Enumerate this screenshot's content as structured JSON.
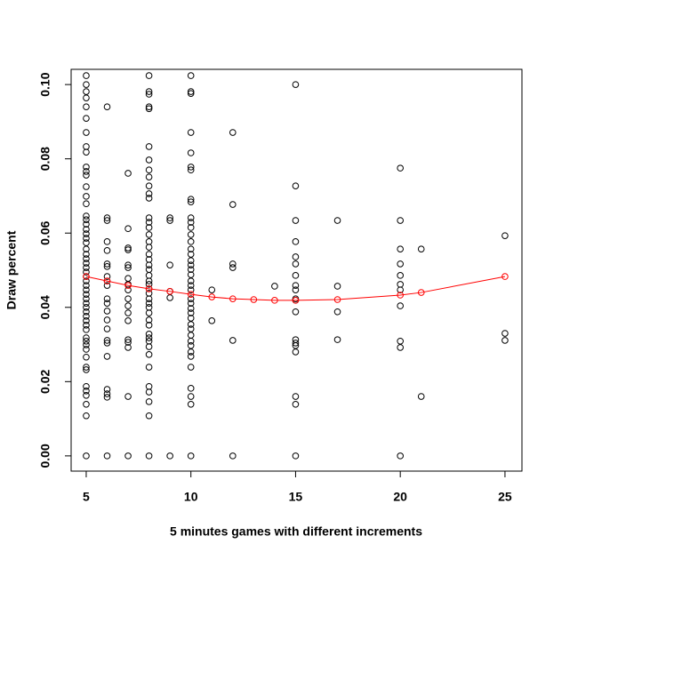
{
  "chart_data": {
    "type": "scatter",
    "xlabel": "5 minutes games with different increments",
    "ylabel": "Draw percent",
    "xlim": [
      4.28,
      25.81
    ],
    "ylim": [
      -0.0041,
      0.1041
    ],
    "xticks": [
      5,
      10,
      15,
      20,
      25
    ],
    "yticks": [
      {
        "value": 0,
        "label": "0.00"
      },
      {
        "value": 0.02,
        "label": "0.02"
      },
      {
        "value": 0.04,
        "label": "0.04"
      },
      {
        "value": 0.06,
        "label": "0.06"
      },
      {
        "value": 0.08,
        "label": "0.08"
      },
      {
        "value": 0.1,
        "label": "0.10"
      }
    ],
    "series": [
      {
        "color": "#000000",
        "x": [
          5,
          5,
          5,
          5,
          5,
          5,
          5,
          5,
          5,
          5,
          5,
          5,
          5,
          5,
          5,
          5,
          5,
          5,
          5,
          5,
          5,
          5,
          5,
          5,
          5,
          5,
          5,
          5,
          5,
          5,
          5,
          5,
          5,
          5,
          5,
          5,
          5,
          5,
          5,
          5,
          5,
          5,
          5,
          5,
          5,
          5,
          5,
          5,
          5,
          5,
          5,
          5,
          5,
          5,
          6,
          6,
          6,
          6,
          6,
          6,
          6,
          6,
          6,
          6,
          6,
          6,
          6,
          6,
          6,
          6,
          6,
          6,
          6,
          6,
          6,
          6,
          7,
          7,
          7,
          7,
          7,
          7,
          7,
          7,
          7,
          7,
          7,
          7,
          7,
          7,
          7,
          7,
          7,
          7,
          8,
          8,
          8,
          8,
          8,
          8,
          8,
          8,
          8,
          8,
          8,
          8,
          8,
          8,
          8,
          8,
          8,
          8,
          8,
          8,
          8,
          8,
          8,
          8,
          8,
          8,
          8,
          8,
          8,
          8,
          8,
          8,
          8,
          8,
          8,
          8,
          8,
          8,
          8,
          8,
          8,
          8,
          8,
          8,
          9,
          9,
          9,
          9,
          9,
          9,
          10,
          10,
          10,
          10,
          10,
          10,
          10,
          10,
          10,
          10,
          10,
          10,
          10,
          10,
          10,
          10,
          10,
          10,
          10,
          10,
          10,
          10,
          10,
          10,
          10,
          10,
          10,
          10,
          10,
          10,
          10,
          10,
          10,
          10,
          10,
          10,
          10,
          10,
          10,
          10,
          11,
          11,
          12,
          12,
          12,
          12,
          12,
          12,
          14,
          15,
          15,
          15,
          15,
          15,
          15,
          15,
          15,
          15,
          15,
          15,
          15,
          15,
          15,
          15,
          15,
          15,
          15,
          15,
          17,
          17,
          17,
          17,
          20,
          20,
          20,
          20,
          20,
          20,
          20,
          20,
          20,
          20,
          20,
          21,
          21,
          25,
          25,
          25
        ],
        "values": [
          0.1024,
          0.1,
          0.0981,
          0.0964,
          0.094,
          0.0909,
          0.0871,
          0.0833,
          0.0818,
          0.0778,
          0.0766,
          0.0756,
          0.0725,
          0.0699,
          0.0679,
          0.0646,
          0.0636,
          0.0624,
          0.061,
          0.0598,
          0.0586,
          0.0574,
          0.0557,
          0.0543,
          0.0531,
          0.0519,
          0.0507,
          0.0495,
          0.0483,
          0.0471,
          0.0459,
          0.0447,
          0.0435,
          0.0423,
          0.0411,
          0.04,
          0.0388,
          0.0376,
          0.0364,
          0.0352,
          0.034,
          0.0318,
          0.0309,
          0.0299,
          0.0287,
          0.0266,
          0.0239,
          0.0232,
          0.0187,
          0.0175,
          0.0163,
          0.0139,
          0.0108,
          0,
          0.094,
          0.0641,
          0.0634,
          0.0577,
          0.0553,
          0.0517,
          0.051,
          0.0483,
          0.0471,
          0.0459,
          0.0423,
          0.0411,
          0.039,
          0.0366,
          0.0342,
          0.0311,
          0.0304,
          0.0268,
          0.0179,
          0.0167,
          0.0158,
          0,
          0.0761,
          0.0612,
          0.056,
          0.0555,
          0.0514,
          0.0507,
          0.0478,
          0.0462,
          0.0447,
          0.0423,
          0.0404,
          0.0385,
          0.0364,
          0.0313,
          0.0306,
          0.0292,
          0.016,
          0,
          0.1024,
          0.0981,
          0.0974,
          0.094,
          0.0935,
          0.0833,
          0.0797,
          0.077,
          0.0751,
          0.0727,
          0.0706,
          0.0694,
          0.0641,
          0.0629,
          0.0615,
          0.0596,
          0.0577,
          0.0562,
          0.0543,
          0.0529,
          0.0514,
          0.0502,
          0.0486,
          0.0471,
          0.0462,
          0.045,
          0.0438,
          0.0423,
          0.0411,
          0.04,
          0.0385,
          0.0366,
          0.0352,
          0.0328,
          0.0318,
          0.0309,
          0.0294,
          0.0273,
          0.0239,
          0.0187,
          0.0172,
          0.0146,
          0.0108,
          0,
          0.0641,
          0.0634,
          0.0514,
          0.0443,
          0.0426,
          0,
          0.1024,
          0.0981,
          0.0976,
          0.0871,
          0.0816,
          0.0778,
          0.077,
          0.0691,
          0.0684,
          0.0641,
          0.0629,
          0.0615,
          0.0596,
          0.0577,
          0.0557,
          0.0543,
          0.0526,
          0.0514,
          0.0502,
          0.0488,
          0.0471,
          0.0459,
          0.0447,
          0.0423,
          0.0411,
          0.0397,
          0.0385,
          0.0371,
          0.0354,
          0.0342,
          0.0325,
          0.0309,
          0.0297,
          0.028,
          0.0268,
          0.0239,
          0.0182,
          0.016,
          0.0139,
          0,
          0.0447,
          0.0364,
          0.0871,
          0.0677,
          0.0517,
          0.0507,
          0.0311,
          0,
          0.0457,
          0.1,
          0.0727,
          0.0634,
          0.0577,
          0.0536,
          0.0517,
          0.0486,
          0.0459,
          0.0447,
          0.0423,
          0.0419,
          0.0388,
          0.0313,
          0.0304,
          0.0297,
          0.028,
          0.016,
          0.0139,
          0,
          0.0634,
          0.0457,
          0.0388,
          0.0313,
          0.0775,
          0.0634,
          0.0557,
          0.0517,
          0.0486,
          0.0462,
          0.0447,
          0.0404,
          0.0309,
          0.0292,
          0,
          0.0557,
          0.016,
          0.0593,
          0.033,
          0.0311
        ]
      },
      {
        "color": "#ff0000",
        "line": true,
        "x": [
          5,
          6,
          7,
          8,
          9,
          10,
          11,
          12,
          13,
          14,
          15,
          17,
          20,
          21,
          25
        ],
        "values": [
          0.0483,
          0.0471,
          0.0459,
          0.045,
          0.0443,
          0.0435,
          0.0428,
          0.0423,
          0.0421,
          0.0419,
          0.0419,
          0.0421,
          0.0433,
          0.044,
          0.0483
        ]
      }
    ]
  }
}
